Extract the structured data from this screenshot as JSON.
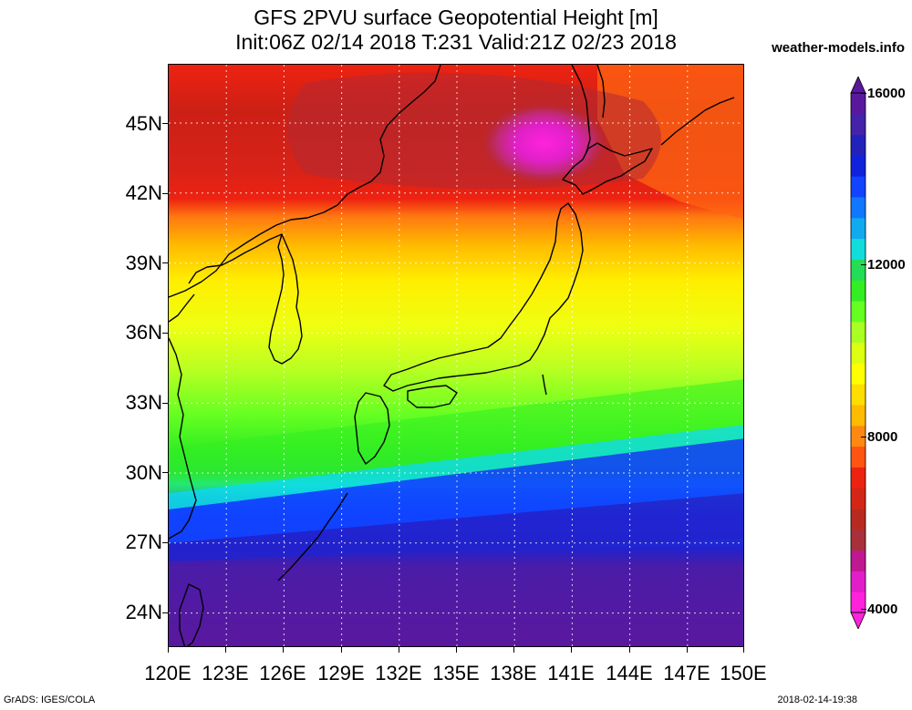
{
  "title": {
    "line1": "GFS 2PVU surface Geopotential Height [m]",
    "line2": "Init:06Z 02/14 2018 T:231 Valid:21Z 02/23 2018"
  },
  "site_label": "weather-models.info",
  "footer": {
    "left": "GrADS: IGES/COLA",
    "right": "2018-02-14-19:38"
  },
  "colors": {
    "magenta": "#ff22dd",
    "dark_red": "#b32a33",
    "red": "#ee2211",
    "orange": "#ff8811",
    "yellow_orange": "#ffbb00",
    "yellow": "#ffff00",
    "yellow_green": "#bbff22",
    "green": "#33ee22",
    "bright_green": "#22dd55",
    "cyan": "#11dddd",
    "blue": "#1144ff",
    "dark_blue": "#1c22c8",
    "purple": "#5a189e",
    "grid": "#ffffff",
    "coast": "#000000"
  },
  "chart_data": {
    "type": "heatmap",
    "title": "GFS 2PVU surface Geopotential Height [m]",
    "subtitle": "Init:06Z 02/14 2018 T:231 Valid:21Z 02/23 2018",
    "x_axis": {
      "range": [
        120,
        150
      ],
      "unit": "degrees E",
      "ticks": [
        "120E",
        "123E",
        "126E",
        "129E",
        "132E",
        "135E",
        "138E",
        "141E",
        "144E",
        "147E",
        "150E"
      ]
    },
    "y_axis": {
      "range": [
        22.5,
        47.5
      ],
      "unit": "degrees N",
      "ticks": [
        "24N",
        "27N",
        "30N",
        "33N",
        "36N",
        "39N",
        "42N",
        "45N"
      ]
    },
    "colorbar": {
      "min": 4000,
      "max": 16000,
      "labels": [
        "4000",
        "8000",
        "12000",
        "16000"
      ],
      "units": "m",
      "triangle_ends": true,
      "steps": [
        {
          "value": 4000,
          "color": "#ff22dd"
        },
        {
          "value": 4500,
          "color": "#e21ec8"
        },
        {
          "value": 5000,
          "color": "#c01890"
        },
        {
          "value": 5500,
          "color": "#a8303a"
        },
        {
          "value": 6000,
          "color": "#b82a20"
        },
        {
          "value": 6500,
          "color": "#d42616"
        },
        {
          "value": 7000,
          "color": "#ee2211"
        },
        {
          "value": 7500,
          "color": "#ff5511"
        },
        {
          "value": 8000,
          "color": "#ff8811"
        },
        {
          "value": 8500,
          "color": "#ffbb00"
        },
        {
          "value": 9000,
          "color": "#ffdd00"
        },
        {
          "value": 9500,
          "color": "#ffff00"
        },
        {
          "value": 10000,
          "color": "#ddff11"
        },
        {
          "value": 10500,
          "color": "#aaff22"
        },
        {
          "value": 11000,
          "color": "#66ff22"
        },
        {
          "value": 11500,
          "color": "#33ee22"
        },
        {
          "value": 12000,
          "color": "#22dd55"
        },
        {
          "value": 12500,
          "color": "#11dddd"
        },
        {
          "value": 13000,
          "color": "#11aaee"
        },
        {
          "value": 13500,
          "color": "#1177ff"
        },
        {
          "value": 14000,
          "color": "#1144ff"
        },
        {
          "value": 14500,
          "color": "#1122dd"
        },
        {
          "value": 15000,
          "color": "#2222bb"
        },
        {
          "value": 15500,
          "color": "#4422aa"
        },
        {
          "value": 16000,
          "color": "#5a189e"
        }
      ]
    },
    "bands": [
      {
        "lat_north": 47.5,
        "lat_south": 44.8,
        "approx_value": 6500
      },
      {
        "lat_north": 44.8,
        "lat_south": 42.2,
        "approx_value": 7000
      },
      {
        "lat_north": 42.2,
        "lat_south": 40.6,
        "approx_value": 8300
      },
      {
        "lat_north": 40.6,
        "lat_south": 38.2,
        "approx_value": 9300
      },
      {
        "lat_north": 38.2,
        "lat_south": 35.2,
        "approx_value": 10200
      },
      {
        "lat_north": 35.2,
        "lat_south": 31.2,
        "approx_value": 11200
      },
      {
        "lat_north": 31.2,
        "lat_south": 29.8,
        "approx_value": 12300
      },
      {
        "lat_north": 29.8,
        "lat_south": 27.3,
        "approx_value": 14300
      },
      {
        "lat_north": 27.3,
        "lat_south": 22.5,
        "approx_value": 15800
      }
    ],
    "features": [
      {
        "name": "minimum",
        "lon": 139.5,
        "lat": 44.3,
        "approx_value": 4000
      }
    ],
    "grid": true
  }
}
